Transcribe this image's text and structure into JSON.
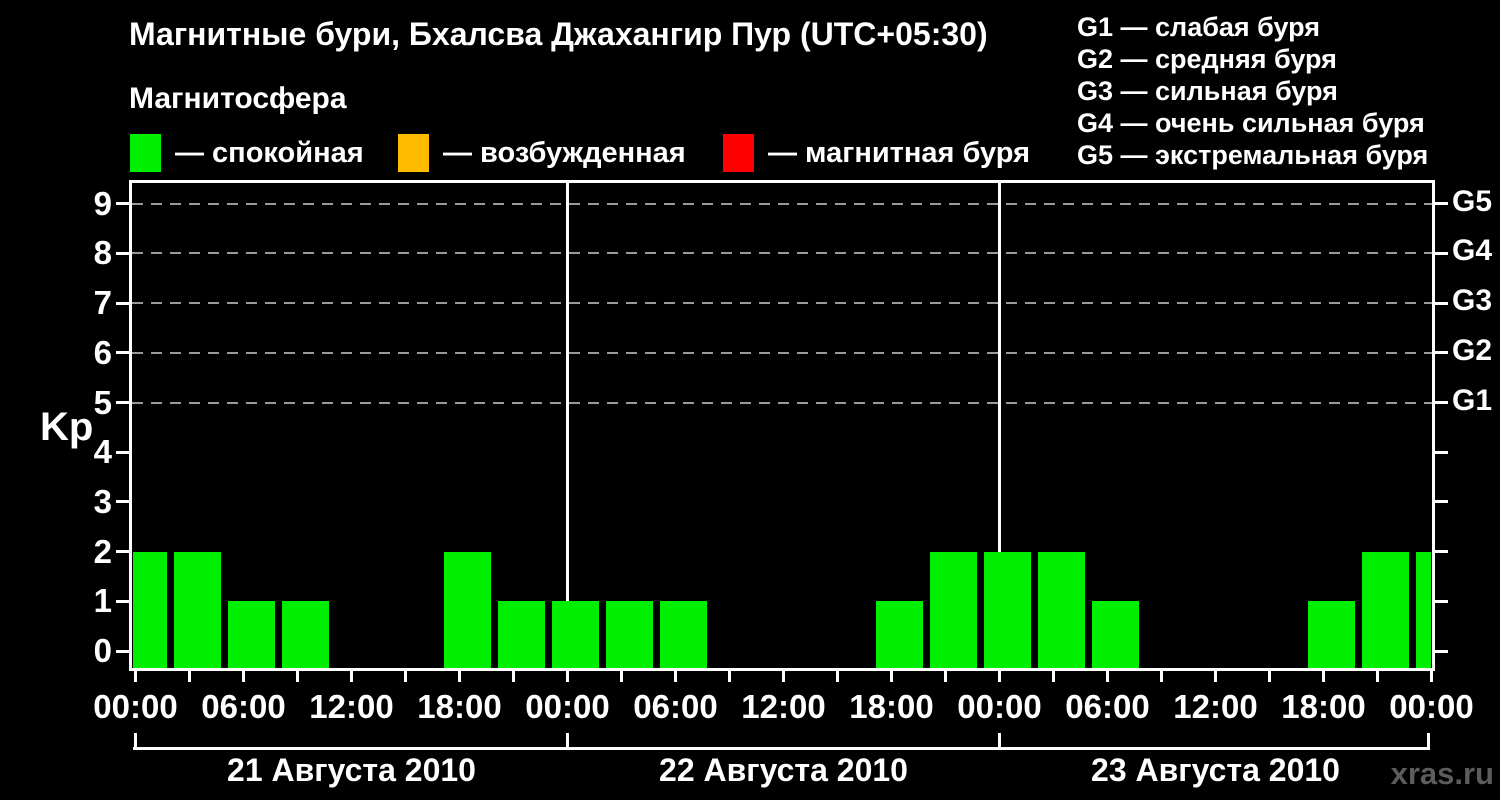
{
  "header": {
    "title": "Магнитные бури, Бхалсва Джахангир Пур (UTC+05:30)",
    "subtitle": "Магнитосфера"
  },
  "magnetosphere_legend": [
    {
      "label": "— спокойная",
      "color": "#00ee00"
    },
    {
      "label": "— возбужденная",
      "color": "#ffbb00"
    },
    {
      "label": "— магнитная буря",
      "color": "#ff0000"
    }
  ],
  "storm_scale_legend": [
    "G1 — слабая буря",
    "G2 — средняя буря",
    "G3 — сильная буря",
    "G4 — очень сильная буря",
    "G5 — экстремальная буря"
  ],
  "watermark": "xras.ru",
  "chart_data": {
    "type": "bar",
    "title": "Магнитные бури, Бхалсва Джахангир Пур (UTC+05:30)",
    "ylabel": "Kp",
    "ylim": [
      0,
      9
    ],
    "y_tick_labels": [
      "0",
      "1",
      "2",
      "3",
      "4",
      "5",
      "6",
      "7",
      "8",
      "9"
    ],
    "grid_levels_kp": [
      5,
      6,
      7,
      8,
      9
    ],
    "right_axis_labels": [
      {
        "kp": 5,
        "label": "G1"
      },
      {
        "kp": 6,
        "label": "G2"
      },
      {
        "kp": 7,
        "label": "G3"
      },
      {
        "kp": 8,
        "label": "G4"
      },
      {
        "kp": 9,
        "label": "G5"
      }
    ],
    "x_tick_interval_hours": 3,
    "x_label_interval_hours": 6,
    "x_tick_labels": [
      "00:00",
      "06:00",
      "12:00",
      "18:00",
      "00:00",
      "06:00",
      "12:00",
      "18:00",
      "00:00",
      "06:00",
      "12:00",
      "18:00",
      "00:00"
    ],
    "bar_interval_hours": 3,
    "bar_color": "#00ee00",
    "days": [
      {
        "date": "21 Августа 2010",
        "hours": [
          "00:00",
          "03:00",
          "06:00",
          "09:00",
          "12:00",
          "15:00",
          "18:00",
          "21:00"
        ],
        "kp_values": [
          2,
          2,
          1,
          1,
          0,
          0,
          2,
          1
        ]
      },
      {
        "date": "22 Августа 2010",
        "hours": [
          "00:00",
          "03:00",
          "06:00",
          "09:00",
          "12:00",
          "15:00",
          "18:00",
          "21:00"
        ],
        "kp_values": [
          1,
          1,
          1,
          0,
          0,
          0,
          1,
          2
        ]
      },
      {
        "date": "23 Августа 2010",
        "hours": [
          "00:00",
          "03:00",
          "06:00",
          "09:00",
          "12:00",
          "15:00",
          "18:00",
          "21:00"
        ],
        "kp_values": [
          2,
          2,
          1,
          0,
          0,
          0,
          1,
          2
        ]
      }
    ],
    "next_day_first_value_kp": 2,
    "grid_color": "#9a9a9a",
    "axis_color": "#ffffff"
  }
}
